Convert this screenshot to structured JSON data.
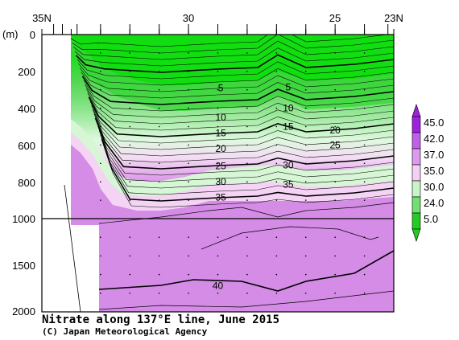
{
  "chart_data": {
    "type": "contour",
    "title": "Nitrate along 137°E line, June 2015",
    "credit": "(C) Japan Meteorological Agency",
    "x_axis": {
      "ticks": [
        "35N",
        "30",
        "25",
        "23N"
      ],
      "range": [
        35,
        23
      ]
    },
    "y_axis": {
      "unit": "(m)",
      "upper_ticks": [
        "0",
        "200",
        "400",
        "600",
        "800",
        "1000"
      ],
      "upper_range": [
        0,
        1000
      ],
      "lower_ticks": [
        "1500",
        "2000"
      ],
      "lower_range": [
        1000,
        2000
      ]
    },
    "contour_labels": [
      {
        "text": "5",
        "lat": 28.9,
        "depth": 290
      },
      {
        "text": "5",
        "lat": 26.6,
        "depth": 285
      },
      {
        "text": "10",
        "lat": 28.9,
        "depth": 450
      },
      {
        "text": "10",
        "lat": 26.6,
        "depth": 400
      },
      {
        "text": "15",
        "lat": 28.9,
        "depth": 535
      },
      {
        "text": "15",
        "lat": 26.6,
        "depth": 500
      },
      {
        "text": "20",
        "lat": 28.9,
        "depth": 620
      },
      {
        "text": "20",
        "lat": 25.0,
        "depth": 520
      },
      {
        "text": "25",
        "lat": 28.9,
        "depth": 715
      },
      {
        "text": "25",
        "lat": 25.0,
        "depth": 600
      },
      {
        "text": "30",
        "lat": 28.9,
        "depth": 800
      },
      {
        "text": "30",
        "lat": 26.6,
        "depth": 710
      },
      {
        "text": "35",
        "lat": 28.9,
        "depth": 885
      },
      {
        "text": "35",
        "lat": 26.6,
        "depth": 815
      },
      {
        "text": "40",
        "lat": 29.0,
        "depth": 1720
      }
    ],
    "colorbar": {
      "labels": [
        "45.0",
        "42.0",
        "37.0",
        "35.0",
        "30.0",
        "24.0",
        "5.0"
      ],
      "colors": [
        "#a020e0",
        "#c060e8",
        "#dd99ee",
        "#f5d0f5",
        "#c8f5c8",
        "#70e070",
        "#22cc22"
      ]
    },
    "colors": {
      "surface": "#11dd11",
      "mid": "#50d050",
      "deep": "#d48ce6",
      "light_pink": "#f7d7f7",
      "pale_green": "#cff5cf"
    }
  }
}
